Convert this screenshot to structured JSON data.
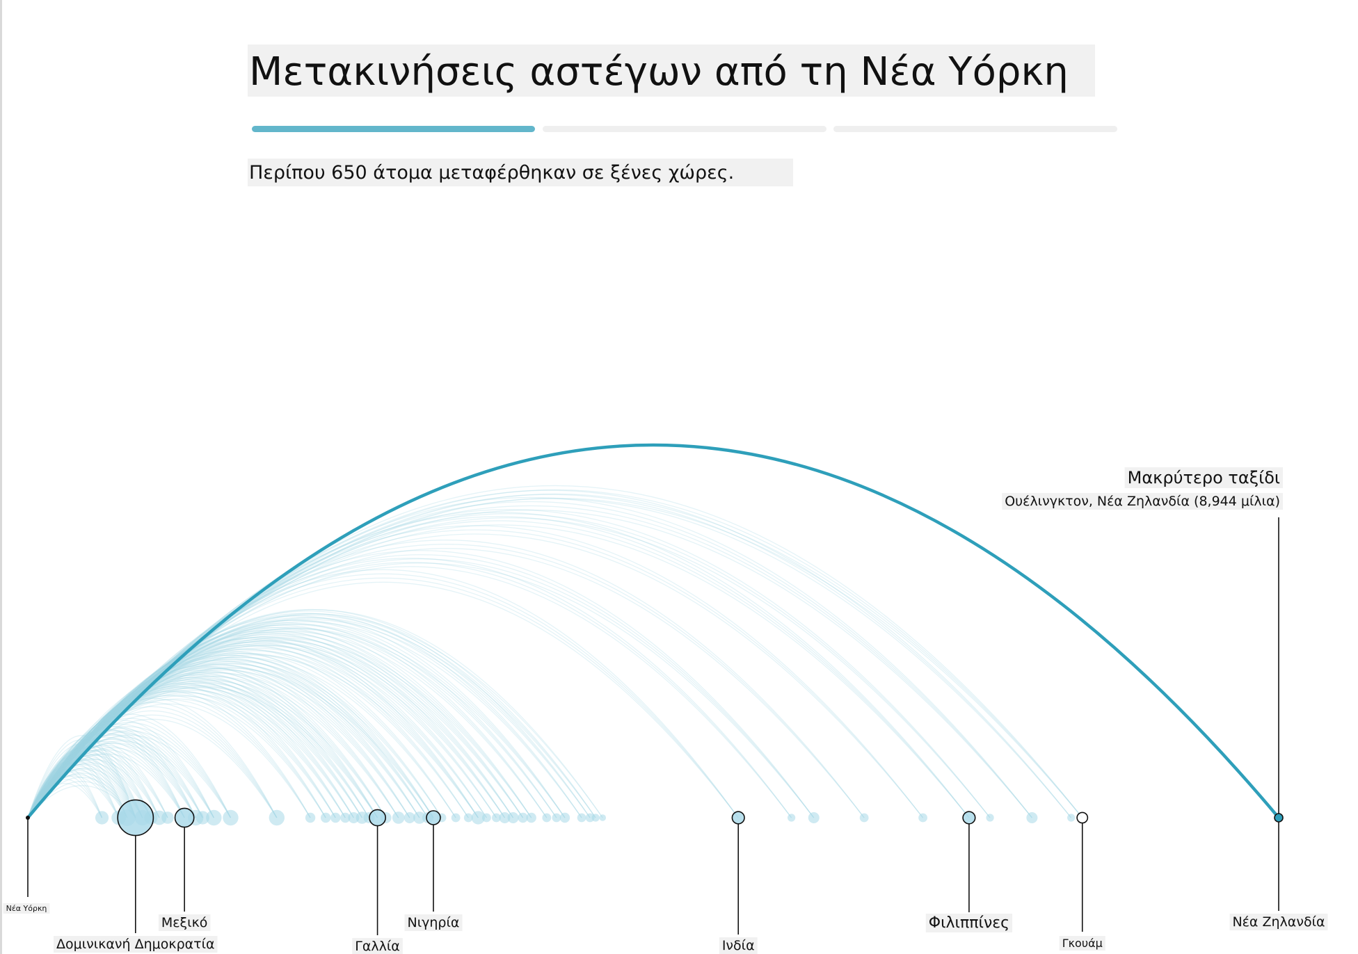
{
  "header": {
    "title": "Μετακινήσεις αστέγων από τη Νέα Υόρκη",
    "subtitle": "Περίπου 650 άτομα μεταφέρθηκαν σε ξένες χώρες.",
    "steps_total": 3,
    "active_step": 1
  },
  "colors": {
    "accent": "#62b6cb",
    "arc": "#2e9fba",
    "light_arc": "#9fd3e3",
    "dot": "#a8d8e8"
  },
  "chart_data": {
    "type": "arc",
    "origin": "Νέα Υόρκη",
    "x_unit": "μίλια",
    "x_range": [
      0,
      8944
    ],
    "annotation": {
      "title": "Μακρύτερο ταξίδι",
      "text": "Ουέλινγκτον, Νέα Ζηλανδία (8,944 μίλια)",
      "distance": 8944
    },
    "labeled_destinations": [
      {
        "name": "Δομινικανή Δημοκρατία",
        "distance": 770,
        "size": 3.2
      },
      {
        "name": "Μεξικό",
        "distance": 1120,
        "size": 1.7
      },
      {
        "name": "Γαλλία",
        "distance": 2500,
        "size": 1.45
      },
      {
        "name": "Νιγηρία",
        "distance": 2900,
        "size": 1.25
      },
      {
        "name": "Ινδία",
        "distance": 5080,
        "size": 1.1
      },
      {
        "name": "Φιλιππίνες",
        "distance": 6730,
        "size": 1.1
      },
      {
        "name": "Γκουάμ",
        "distance": 7540,
        "size": 0.95
      },
      {
        "name": "Νέα Ζηλανδία",
        "distance": 8944,
        "size": 0.75
      }
    ],
    "destinations": [
      {
        "distance": 530,
        "size": 1.2
      },
      {
        "distance": 650,
        "size": 1.3
      },
      {
        "distance": 710,
        "size": 1.5
      },
      {
        "distance": 820,
        "size": 1.4
      },
      {
        "distance": 880,
        "size": 1.2
      },
      {
        "distance": 940,
        "size": 1.3
      },
      {
        "distance": 1000,
        "size": 1.1
      },
      {
        "distance": 1200,
        "size": 1.4
      },
      {
        "distance": 1250,
        "size": 1.2
      },
      {
        "distance": 1330,
        "size": 1.4
      },
      {
        "distance": 1450,
        "size": 1.4
      },
      {
        "distance": 1780,
        "size": 1.4
      },
      {
        "distance": 2020,
        "size": 0.9
      },
      {
        "distance": 2130,
        "size": 0.9
      },
      {
        "distance": 2200,
        "size": 0.9
      },
      {
        "distance": 2270,
        "size": 0.9
      },
      {
        "distance": 2330,
        "size": 1.0
      },
      {
        "distance": 2390,
        "size": 1.1
      },
      {
        "distance": 2440,
        "size": 1.0
      },
      {
        "distance": 2560,
        "size": 1.0
      },
      {
        "distance": 2650,
        "size": 1.1
      },
      {
        "distance": 2730,
        "size": 1.0
      },
      {
        "distance": 2800,
        "size": 1.1
      },
      {
        "distance": 2860,
        "size": 1.0
      },
      {
        "distance": 2960,
        "size": 0.8
      },
      {
        "distance": 3060,
        "size": 0.8
      },
      {
        "distance": 3150,
        "size": 0.8
      },
      {
        "distance": 3220,
        "size": 1.2
      },
      {
        "distance": 3280,
        "size": 0.8
      },
      {
        "distance": 3350,
        "size": 0.8
      },
      {
        "distance": 3410,
        "size": 1.0
      },
      {
        "distance": 3470,
        "size": 1.0
      },
      {
        "distance": 3540,
        "size": 0.9
      },
      {
        "distance": 3600,
        "size": 0.9
      },
      {
        "distance": 3710,
        "size": 0.8
      },
      {
        "distance": 3780,
        "size": 0.8
      },
      {
        "distance": 3840,
        "size": 0.9
      },
      {
        "distance": 3960,
        "size": 0.8
      },
      {
        "distance": 4020,
        "size": 0.8
      },
      {
        "distance": 4060,
        "size": 0.7
      },
      {
        "distance": 4110,
        "size": 0.6
      },
      {
        "distance": 5460,
        "size": 0.7
      },
      {
        "distance": 5620,
        "size": 1.0
      },
      {
        "distance": 5980,
        "size": 0.8
      },
      {
        "distance": 6400,
        "size": 0.8
      },
      {
        "distance": 6880,
        "size": 0.7
      },
      {
        "distance": 7180,
        "size": 1.0
      },
      {
        "distance": 7460,
        "size": 0.7
      }
    ]
  }
}
